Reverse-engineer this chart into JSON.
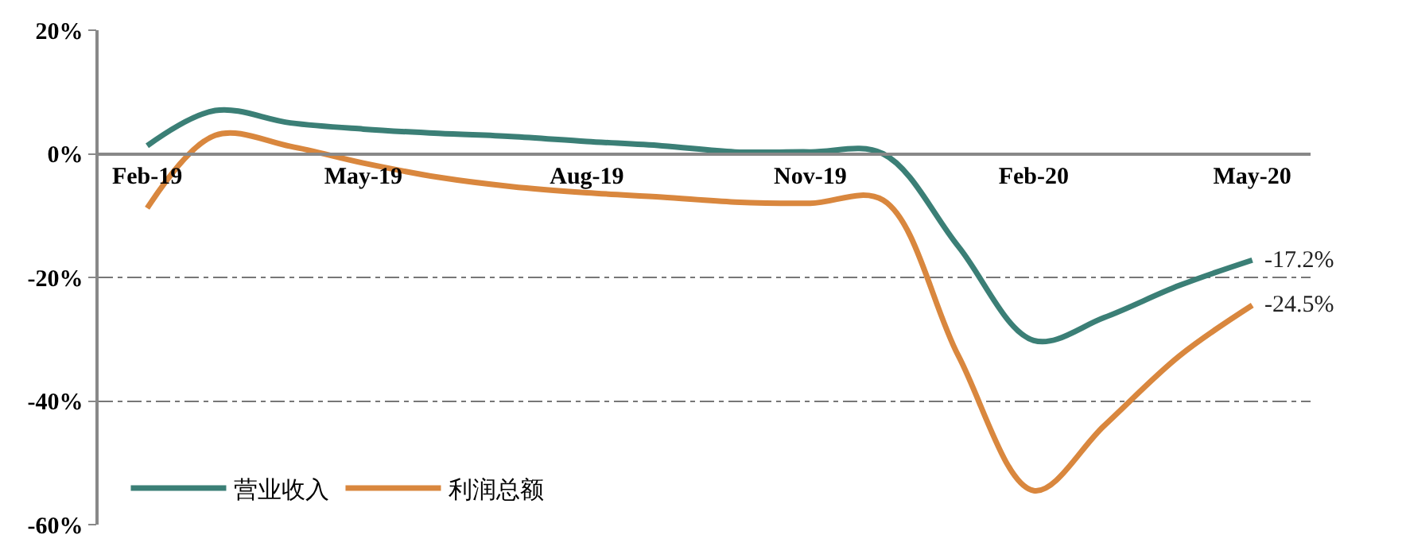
{
  "chart_data": {
    "type": "line",
    "x": [
      "2019-02",
      "2019-03",
      "2019-04",
      "2019-05",
      "2019-06",
      "2019-07",
      "2019-08",
      "2019-09",
      "2019-10",
      "2019-11",
      "2019-12",
      "2020-01",
      "2020-02",
      "2020-03",
      "2020-04",
      "2020-05"
    ],
    "series": [
      {
        "name": "营业收入",
        "color": "#3b7f76",
        "values": [
          1.3,
          7.0,
          5.0,
          4.0,
          3.3,
          2.8,
          2.0,
          1.3,
          0.3,
          0.3,
          0.0,
          -15.0,
          -30.2,
          -26.5,
          -21.3,
          -17.2
        ]
      },
      {
        "name": "利润总额",
        "color": "#d9873e",
        "values": [
          -8.8,
          3.0,
          1.2,
          -1.5,
          -3.8,
          -5.3,
          -6.3,
          -7.0,
          -7.8,
          -8.0,
          -7.5,
          -32.7,
          -54.5,
          -44.0,
          -32.7,
          -24.5
        ]
      }
    ],
    "xlim": [
      "2019-01-12",
      "2020-05-25"
    ],
    "xticks": [
      {
        "value": "2019-02",
        "label": "Feb-19"
      },
      {
        "value": "2019-05",
        "label": "May-19"
      },
      {
        "value": "2019-08",
        "label": "Aug-19"
      },
      {
        "value": "2019-11",
        "label": "Nov-19"
      },
      {
        "value": "2020-02",
        "label": "Feb-20"
      },
      {
        "value": "2020-05",
        "label": "May-20"
      }
    ],
    "ylim": [
      -60,
      20
    ],
    "yticks": [
      {
        "value": 20,
        "label": "20%"
      },
      {
        "value": 0,
        "label": "0%"
      },
      {
        "value": -20,
        "label": "-20%"
      },
      {
        "value": -40,
        "label": "-40%"
      },
      {
        "value": -60,
        "label": "-60%"
      }
    ],
    "annotations": [
      {
        "text": "-17.2%",
        "x": "2020-05",
        "y": -17.2
      },
      {
        "text": "-24.5%",
        "x": "2020-05",
        "y": -24.5
      }
    ],
    "grid": "y",
    "legend": "bottom left",
    "marker": "none",
    "line_style": "solid"
  }
}
